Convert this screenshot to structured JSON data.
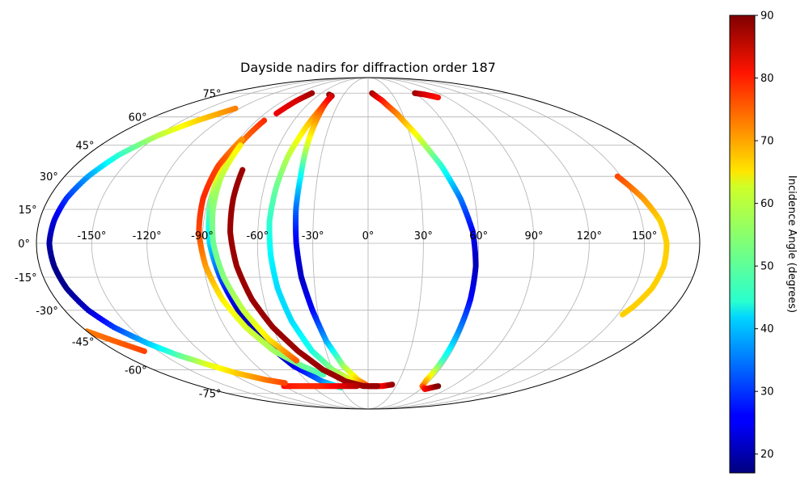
{
  "chart_data": {
    "type": "scatter",
    "projection": "mollweide",
    "title": "Dayside nadirs for diffraction order 187",
    "grid": true,
    "longitude_ticks": [
      "-150°",
      "-120°",
      "-90°",
      "-60°",
      "-30°",
      "0°",
      "30°",
      "60°",
      "90°",
      "120°",
      "150°"
    ],
    "latitude_ticks": [
      "75°",
      "60°",
      "45°",
      "30°",
      "15°",
      "0°",
      "-15°",
      "-30°",
      "-45°",
      "-60°",
      "-75°"
    ],
    "colorbar": {
      "label": "Incidence Angle (degrees)",
      "colormap": "jet",
      "range": [
        17,
        90
      ],
      "ticks": [
        "20",
        "30",
        "40",
        "50",
        "60",
        "70",
        "80",
        "90"
      ]
    },
    "series": [
      {
        "points": [
          [
            5,
            75,
            88
          ],
          [
            15,
            70,
            80
          ],
          [
            25,
            62,
            72
          ],
          [
            35,
            50,
            62
          ],
          [
            45,
            35,
            48
          ],
          [
            52,
            20,
            35
          ],
          [
            57,
            5,
            26
          ],
          [
            59,
            -10,
            21
          ],
          [
            59,
            -25,
            26
          ],
          [
            58,
            -40,
            36
          ],
          [
            57,
            -55,
            48
          ],
          [
            56,
            -66,
            66
          ],
          [
            58,
            -70,
            72
          ],
          [
            65,
            -72,
            80
          ],
          [
            75,
            -70,
            90
          ]
        ]
      },
      {
        "points": [
          [
            -48,
            74,
            90
          ],
          [
            -43,
            73,
            88
          ],
          [
            -44,
            65,
            76
          ],
          [
            -47,
            55,
            66
          ],
          [
            -51,
            40,
            58
          ],
          [
            -53,
            25,
            52
          ],
          [
            -54,
            10,
            48
          ],
          [
            -53,
            -5,
            44
          ],
          [
            -51,
            -20,
            42
          ],
          [
            -47,
            -35,
            42
          ],
          [
            -40,
            -50,
            46
          ],
          [
            -30,
            -60,
            54
          ],
          [
            -15,
            -67,
            62
          ],
          [
            0,
            -70,
            70
          ],
          [
            15,
            -70,
            80
          ],
          [
            25,
            -69,
            88
          ]
        ]
      },
      {
        "points": [
          [
            -44,
            73,
            84
          ],
          [
            -42,
            60,
            72
          ],
          [
            -41,
            45,
            60
          ],
          [
            -40,
            30,
            45
          ],
          [
            -40,
            15,
            34
          ],
          [
            -39,
            0,
            25
          ],
          [
            -37,
            -15,
            22
          ],
          [
            -33,
            -30,
            26
          ],
          [
            -28,
            -45,
            38
          ],
          [
            -20,
            -58,
            55
          ],
          [
            -10,
            -66,
            66
          ],
          [
            0,
            -70,
            76
          ],
          [
            10,
            -70,
            86
          ]
        ]
      },
      {
        "points": [
          [
            -72,
            75,
            88
          ],
          [
            -76,
            70,
            84
          ],
          [
            -80,
            62,
            82
          ]
        ]
      },
      {
        "points": [
          [
            -84,
            58,
            78
          ],
          [
            -87,
            45,
            72
          ],
          [
            -89,
            30,
            62
          ],
          [
            -88,
            15,
            52
          ],
          [
            -86,
            0,
            42
          ],
          [
            -82,
            -15,
            32
          ],
          [
            -77,
            -30,
            22
          ],
          [
            -70,
            -45,
            20
          ],
          [
            -60,
            -58,
            24
          ],
          [
            -45,
            -67,
            35
          ],
          [
            -30,
            -71,
            48
          ]
        ]
      },
      {
        "points": [
          [
            -88,
            48,
            70
          ],
          [
            -92,
            35,
            76
          ],
          [
            -93,
            20,
            78
          ],
          [
            -92,
            5,
            76
          ],
          [
            -89,
            -10,
            70
          ],
          [
            -84,
            -25,
            64
          ],
          [
            -77,
            -38,
            60
          ],
          [
            -67,
            -50,
            56
          ],
          [
            -53,
            -58,
            52
          ],
          [
            -40,
            -63,
            50
          ]
        ]
      },
      {
        "points": [
          [
            -86,
            45,
            64
          ],
          [
            -87,
            30,
            58
          ],
          [
            -86,
            15,
            54
          ],
          [
            -84,
            0,
            52
          ],
          [
            -80,
            -15,
            54
          ],
          [
            -74,
            -30,
            58
          ],
          [
            -66,
            -44,
            64
          ],
          [
            -55,
            -55,
            74
          ]
        ]
      },
      {
        "points": [
          [
            -76,
            33,
            88
          ],
          [
            -76,
            20,
            88
          ],
          [
            -75,
            5,
            88
          ],
          [
            -72,
            -10,
            88
          ],
          [
            -67,
            -25,
            88
          ],
          [
            -60,
            -38,
            88
          ],
          [
            -50,
            -50,
            88
          ],
          [
            -38,
            -60,
            88
          ],
          [
            -22,
            -67,
            88
          ],
          [
            -5,
            -70,
            88
          ],
          [
            10,
            -70,
            88
          ]
        ]
      },
      {
        "points": [
          [
            -90,
            -70,
            80
          ],
          [
            -70,
            -70,
            78
          ],
          [
            -50,
            -70,
            78
          ],
          [
            -30,
            -70,
            82
          ],
          [
            -12,
            -70,
            86
          ]
        ]
      },
      {
        "points": [
          [
            -124,
            65,
            72
          ],
          [
            -138,
            58,
            66
          ],
          [
            -150,
            50,
            58
          ],
          [
            -160,
            40,
            48
          ],
          [
            -166,
            30,
            38
          ],
          [
            -170,
            20,
            30
          ],
          [
            -172,
            10,
            24
          ],
          [
            -173,
            0,
            20
          ],
          [
            -172,
            -10,
            18
          ],
          [
            -170,
            -20,
            18
          ],
          [
            -166,
            -30,
            22
          ],
          [
            -160,
            -38,
            30
          ],
          [
            -150,
            -46,
            40
          ],
          [
            -140,
            -52,
            50
          ],
          [
            -128,
            -57,
            60
          ],
          [
            -115,
            -62,
            66
          ],
          [
            -98,
            -66,
            72
          ],
          [
            -84,
            -68,
            76
          ]
        ]
      },
      {
        "points": [
          [
            -180,
            -40,
            72
          ],
          [
            -170,
            -45,
            74
          ],
          [
            -160,
            -50,
            76
          ]
        ]
      },
      {
        "points": [
          [
            60,
            75,
            88
          ],
          [
            70,
            74,
            84
          ],
          [
            80,
            72,
            80
          ]
        ]
      },
      {
        "points": [
          [
            148,
            30,
            76
          ],
          [
            155,
            20,
            70
          ],
          [
            160,
            10,
            66
          ],
          [
            162,
            0,
            66
          ],
          [
            162,
            -10,
            66
          ],
          [
            160,
            -20,
            66
          ],
          [
            156,
            -28,
            66
          ],
          [
            153,
            -32,
            66
          ]
        ]
      }
    ]
  }
}
